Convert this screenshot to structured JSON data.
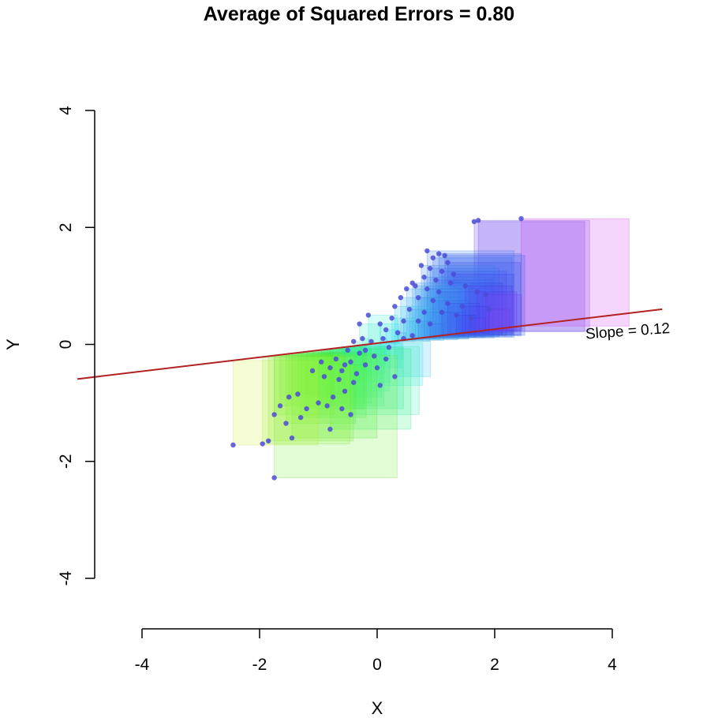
{
  "chart_data": {
    "type": "scatter",
    "title": "Average of Squared Errors = 0.80",
    "xlabel": "X",
    "ylabel": "Y",
    "xlim": [
      -4,
      4
    ],
    "ylim": [
      -4,
      4
    ],
    "xticks": [
      "-4",
      "-2",
      "0",
      "2",
      "4"
    ],
    "yticks": [
      "-4",
      "-2",
      "0",
      "2",
      "4"
    ],
    "grid": false,
    "annotation": "Slope = 0.12",
    "regression_line": {
      "slope": 0.12,
      "intercept": 0.02,
      "color": "#b22222"
    },
    "point_color": "#4b4bd6",
    "points": [
      {
        "x": 1.65,
        "y": 2.1
      },
      {
        "x": 1.72,
        "y": 2.12
      },
      {
        "x": 2.45,
        "y": 2.15
      },
      {
        "x": 0.85,
        "y": 1.6
      },
      {
        "x": 1.05,
        "y": 1.55
      },
      {
        "x": 1.15,
        "y": 1.52
      },
      {
        "x": 0.95,
        "y": 1.48
      },
      {
        "x": 1.2,
        "y": 1.4
      },
      {
        "x": 0.75,
        "y": 1.35
      },
      {
        "x": 0.9,
        "y": 1.3
      },
      {
        "x": 1.1,
        "y": 1.25
      },
      {
        "x": 1.3,
        "y": 1.2
      },
      {
        "x": 0.8,
        "y": 1.15
      },
      {
        "x": 1.0,
        "y": 1.1
      },
      {
        "x": 1.25,
        "y": 1.05
      },
      {
        "x": 0.6,
        "y": 1.05
      },
      {
        "x": 0.65,
        "y": 1.0
      },
      {
        "x": 0.5,
        "y": 0.95
      },
      {
        "x": 0.85,
        "y": 0.95
      },
      {
        "x": 1.05,
        "y": 0.9
      },
      {
        "x": 1.5,
        "y": 1.0
      },
      {
        "x": 1.7,
        "y": 0.9
      },
      {
        "x": 1.85,
        "y": 0.85
      },
      {
        "x": 0.4,
        "y": 0.8
      },
      {
        "x": 0.7,
        "y": 0.8
      },
      {
        "x": 0.95,
        "y": 0.75
      },
      {
        "x": 1.2,
        "y": 0.7
      },
      {
        "x": 1.45,
        "y": 0.65
      },
      {
        "x": 0.3,
        "y": 0.65
      },
      {
        "x": 0.55,
        "y": 0.6
      },
      {
        "x": 0.8,
        "y": 0.55
      },
      {
        "x": 1.1,
        "y": 0.55
      },
      {
        "x": 1.35,
        "y": 0.5
      },
      {
        "x": 0.25,
        "y": 0.45
      },
      {
        "x": 0.45,
        "y": 0.4
      },
      {
        "x": 0.7,
        "y": 0.4
      },
      {
        "x": 0.9,
        "y": 0.35
      },
      {
        "x": 1.6,
        "y": 0.45
      },
      {
        "x": 1.9,
        "y": 0.6
      },
      {
        "x": -0.15,
        "y": 0.5
      },
      {
        "x": -0.3,
        "y": 0.35
      },
      {
        "x": 0.05,
        "y": 0.35
      },
      {
        "x": 0.15,
        "y": 0.25
      },
      {
        "x": 0.35,
        "y": 0.2
      },
      {
        "x": 0.6,
        "y": 0.15
      },
      {
        "x": -0.25,
        "y": 0.1
      },
      {
        "x": -0.4,
        "y": 0.05
      },
      {
        "x": -0.1,
        "y": 0.05
      },
      {
        "x": 0.1,
        "y": 0.1
      },
      {
        "x": 0.2,
        "y": -0.05
      },
      {
        "x": -0.5,
        "y": -0.1
      },
      {
        "x": -0.3,
        "y": -0.15
      },
      {
        "x": -0.05,
        "y": -0.2
      },
      {
        "x": 0.15,
        "y": -0.25
      },
      {
        "x": -0.7,
        "y": -0.25
      },
      {
        "x": -0.45,
        "y": -0.3
      },
      {
        "x": -0.2,
        "y": -0.35
      },
      {
        "x": 0.0,
        "y": -0.4
      },
      {
        "x": 0.3,
        "y": -0.55
      },
      {
        "x": 0.05,
        "y": -0.7
      },
      {
        "x": -0.95,
        "y": -0.3
      },
      {
        "x": -0.8,
        "y": -0.4
      },
      {
        "x": -0.6,
        "y": -0.45
      },
      {
        "x": -0.35,
        "y": -0.5
      },
      {
        "x": -1.1,
        "y": -0.45
      },
      {
        "x": -0.9,
        "y": -0.55
      },
      {
        "x": -0.65,
        "y": -0.6
      },
      {
        "x": -0.4,
        "y": -0.65
      },
      {
        "x": -0.55,
        "y": -0.8
      },
      {
        "x": -0.75,
        "y": -0.9
      },
      {
        "x": -1.0,
        "y": -1.0
      },
      {
        "x": -0.85,
        "y": -1.05
      },
      {
        "x": -0.6,
        "y": -1.1
      },
      {
        "x": -0.45,
        "y": -1.2
      },
      {
        "x": -1.35,
        "y": -0.85
      },
      {
        "x": -1.5,
        "y": -0.9
      },
      {
        "x": -1.2,
        "y": -1.1
      },
      {
        "x": -1.65,
        "y": -1.05
      },
      {
        "x": -1.3,
        "y": -1.25
      },
      {
        "x": -1.75,
        "y": -1.2
      },
      {
        "x": -1.55,
        "y": -1.35
      },
      {
        "x": -0.8,
        "y": -1.45
      },
      {
        "x": -1.45,
        "y": -1.6
      },
      {
        "x": -1.85,
        "y": -1.65
      },
      {
        "x": -1.95,
        "y": -1.7
      },
      {
        "x": -2.45,
        "y": -1.72
      },
      {
        "x": -1.75,
        "y": -2.28
      },
      {
        "x": -0.55,
        "y": -0.35
      },
      {
        "x": -0.2,
        "y": -0.1
      },
      {
        "x": 0.45,
        "y": 0.1
      }
    ]
  }
}
